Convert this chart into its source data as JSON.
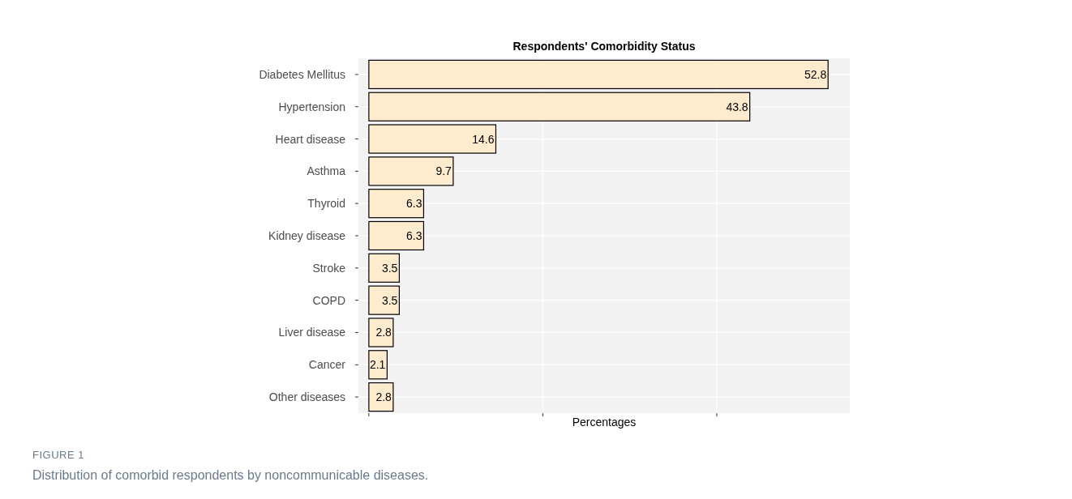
{
  "chart_data": {
    "type": "bar",
    "orientation": "horizontal",
    "title": "Respondents' Comorbidity Status",
    "xlabel": "Percentages",
    "categories": [
      "Diabetes Mellitus",
      "Hypertension",
      "Heart disease",
      "Asthma",
      "Thyroid",
      "Kidney disease",
      "Stroke",
      "COPD",
      "Liver disease",
      "Cancer",
      "Other diseases"
    ],
    "values": [
      52.8,
      43.8,
      14.6,
      9.7,
      6.3,
      6.3,
      3.5,
      3.5,
      2.8,
      2.1,
      2.8
    ],
    "color": "#ffebcd",
    "data_labels": true,
    "xlim": [
      -1.2,
      55.3
    ],
    "xticks": [
      {
        "value": 0,
        "label": null
      },
      {
        "value": 20,
        "label": null
      },
      {
        "value": 40,
        "label": null
      }
    ],
    "grid": true,
    "tick_labels": "y",
    "annotations": [
      "FIGURE 1",
      "Distribution of comorbid respondents by noncommunicable diseases."
    ]
  }
}
